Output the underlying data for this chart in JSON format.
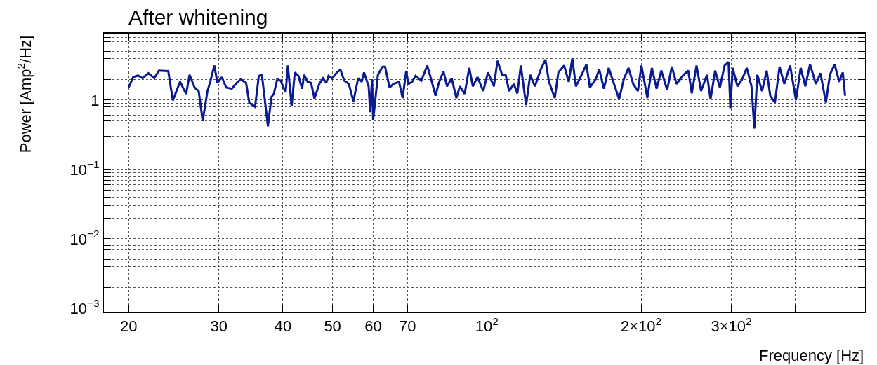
{
  "chart_data": {
    "type": "line",
    "title": "After whitening",
    "xlabel": "Frequency [Hz]",
    "ylabel": "Power [Amp$^{2}$/Hz]",
    "log": "xy",
    "grid": true,
    "marker": "none",
    "line_style": "solid",
    "xlim": [
      17.9,
      547
    ],
    "ylim": [
      0.00089,
      9.1
    ],
    "xticks": [
      20,
      30,
      40,
      50,
      60,
      70,
      {
        "value": 80,
        "label": null
      },
      {
        "value": 90,
        "label": null
      },
      {
        "value": 100,
        "label": "10$^{2}$"
      },
      {
        "value": 200,
        "label": "2×10$^{2}$"
      },
      {
        "value": 300,
        "label": "3×10$^{2}$"
      },
      {
        "value": 400,
        "label": null
      },
      {
        "value": 500,
        "label": null
      }
    ],
    "yticks": [
      {
        "value": 0.001,
        "label": "10$^{−3}$"
      },
      {
        "value": 0.002,
        "label": null
      },
      {
        "value": 0.003,
        "label": null
      },
      {
        "value": 0.004,
        "label": null
      },
      {
        "value": 0.005,
        "label": null
      },
      {
        "value": 0.006,
        "label": null
      },
      {
        "value": 0.007,
        "label": null
      },
      {
        "value": 0.008,
        "label": null
      },
      {
        "value": 0.009,
        "label": null
      },
      {
        "value": 0.01,
        "label": "10$^{−2}$"
      },
      {
        "value": 0.02,
        "label": null
      },
      {
        "value": 0.03,
        "label": null
      },
      {
        "value": 0.04,
        "label": null
      },
      {
        "value": 0.05,
        "label": null
      },
      {
        "value": 0.06,
        "label": null
      },
      {
        "value": 0.07,
        "label": null
      },
      {
        "value": 0.08,
        "label": null
      },
      {
        "value": 0.09,
        "label": null
      },
      {
        "value": 0.1,
        "label": "10$^{−1}$"
      },
      {
        "value": 0.2,
        "label": null
      },
      {
        "value": 0.3,
        "label": null
      },
      {
        "value": 0.4,
        "label": null
      },
      {
        "value": 0.5,
        "label": null
      },
      {
        "value": 0.6,
        "label": null
      },
      {
        "value": 0.7,
        "label": null
      },
      {
        "value": 0.8,
        "label": null
      },
      {
        "value": 0.9,
        "label": null
      },
      1,
      {
        "value": 2,
        "label": null
      },
      {
        "value": 3,
        "label": null
      },
      {
        "value": 4,
        "label": null
      },
      {
        "value": 5,
        "label": null
      },
      {
        "value": 6,
        "label": null
      },
      {
        "value": 7,
        "label": null
      },
      {
        "value": 8,
        "label": null
      },
      {
        "value": 9,
        "label": null
      }
    ],
    "series": [
      {
        "color": "#0b1a8f",
        "x": [
          20.0,
          20.42,
          20.86,
          21.3,
          21.86,
          22.44,
          22.92,
          23.9,
          24.4,
          25.2,
          25.9,
          26.3,
          26.9,
          27.4,
          27.9,
          28.5,
          28.9,
          29.4,
          29.8,
          30.4,
          31.0,
          31.8,
          32.5,
          33.1,
          33.9,
          34.4,
          35.3,
          35.9,
          36.4,
          37.4,
          38.0,
          38.4,
          39.0,
          39.6,
          40.5,
          40.9,
          41.6,
          42.2,
          42.9,
          43.6,
          44.0,
          44.7,
          45.4,
          46.1,
          47.1,
          47.9,
          48.6,
          49.1,
          49.9,
          51.0,
          51.8,
          52.7,
          53.8,
          54.9,
          56.1,
          57.0,
          57.6,
          58.8,
          59.2,
          59.7,
          60.0,
          61.3,
          62.6,
          63.3,
          64.6,
          65.7,
          67.4,
          68.5,
          69.6,
          70.3,
          71.5,
          72.6,
          74.5,
          76.5,
          78.1,
          79.4,
          80.6,
          82.3,
          83.6,
          85.4,
          87.2,
          88.6,
          90.5,
          92.4,
          93.9,
          95.9,
          98.4,
          100.5,
          103.2,
          104.9,
          107.1,
          108.8,
          110.5,
          112.9,
          114.7,
          116.5,
          119.3,
          121.5,
          124.1,
          127.4,
          130.1,
          132.2,
          135.7,
          137.9,
          141.5,
          144.5,
          146.8,
          149.2,
          153.1,
          156.4,
          158.9,
          163.1,
          165.7,
          169.2,
          172.9,
          176.5,
          181.2,
          185.0,
          189.0,
          193.0,
          197.1,
          200.3,
          205.7,
          209.9,
          214.4,
          219.0,
          224.8,
          229.6,
          234.5,
          242.0,
          247.2,
          251.1,
          256.5,
          261.8,
          268.9,
          273.2,
          278.9,
          284.9,
          291.0,
          296.2,
          298.7,
          301.8,
          308.3,
          314.9,
          321.5,
          328.4,
          332.6,
          337.1,
          344.3,
          351.6,
          357.2,
          364.8,
          372.5,
          380.5,
          390.6,
          401.0,
          409.6,
          418.3,
          427.1,
          438.5,
          447.7,
          458.7,
          467.1,
          476.9,
          487.1,
          494.9,
          500
        ],
        "values": [
          1.52,
          2.15,
          2.27,
          2.07,
          2.45,
          2.07,
          2.67,
          2.62,
          0.99,
          1.84,
          1.23,
          2.32,
          1.52,
          1.35,
          0.5,
          1.35,
          1.91,
          3.16,
          1.77,
          2.15,
          1.52,
          1.46,
          1.77,
          2.0,
          1.77,
          0.92,
          0.8,
          2.24,
          2.32,
          0.42,
          1.11,
          1.23,
          2.0,
          1.91,
          1.3,
          3.16,
          0.82,
          2.51,
          2.24,
          1.46,
          2.32,
          1.84,
          1.77,
          1.05,
          1.71,
          2.07,
          1.77,
          2.24,
          2.07,
          2.51,
          2.75,
          1.91,
          1.71,
          0.96,
          2.07,
          1.84,
          2.51,
          1.58,
          0.67,
          2.0,
          0.51,
          2.32,
          3.04,
          3.04,
          1.52,
          1.71,
          1.84,
          1.07,
          2.62,
          1.71,
          1.84,
          2.24,
          1.91,
          3.16,
          1.84,
          1.16,
          1.77,
          2.62,
          1.58,
          2.07,
          1.07,
          1.58,
          1.23,
          2.92,
          1.58,
          2.15,
          1.35,
          2.51,
          1.58,
          3.69,
          2.32,
          2.32,
          1.35,
          1.71,
          1.25,
          3.16,
          0.85,
          2.32,
          1.58,
          2.78,
          3.84,
          1.84,
          1.07,
          2.51,
          3.16,
          1.84,
          3.99,
          1.58,
          2.32,
          3.29,
          1.52,
          2.0,
          2.78,
          1.46,
          2.92,
          1.84,
          1.03,
          2.0,
          2.92,
          1.71,
          1.35,
          3.16,
          1.07,
          2.92,
          1.46,
          2.67,
          1.4,
          3.04,
          1.71,
          2.32,
          2.67,
          1.25,
          3.16,
          1.35,
          2.32,
          1.03,
          2.67,
          1.52,
          3.16,
          3.56,
          0.76,
          2.92,
          1.58,
          2.0,
          2.92,
          1.58,
          0.39,
          2.32,
          1.35,
          2.67,
          1.16,
          0.92,
          3.04,
          1.71,
          3.16,
          1.0,
          2.92,
          1.58,
          3.29,
          1.71,
          2.45,
          0.92,
          2.32,
          3.29,
          1.84,
          2.51,
          1.16
        ]
      }
    ]
  }
}
